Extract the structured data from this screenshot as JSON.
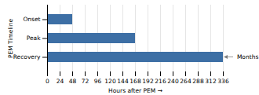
{
  "chart_data": {
    "type": "bar",
    "orientation": "horizontal",
    "categories": [
      "Recovery",
      "Peak",
      "Onset"
    ],
    "values": [
      336,
      168,
      48
    ],
    "color": "#3d6fa5",
    "xlabel": "Hours after PEM",
    "ylabel": "PEM Timeline",
    "xlim": [
      0,
      336
    ],
    "xticks": [
      0,
      24,
      48,
      72,
      96,
      120,
      144,
      168,
      192,
      216,
      240,
      264,
      288,
      312,
      336
    ],
    "grid": true,
    "annotations": [
      {
        "text": " Months",
        "x": 336,
        "y": "Recovery"
      }
    ]
  }
}
